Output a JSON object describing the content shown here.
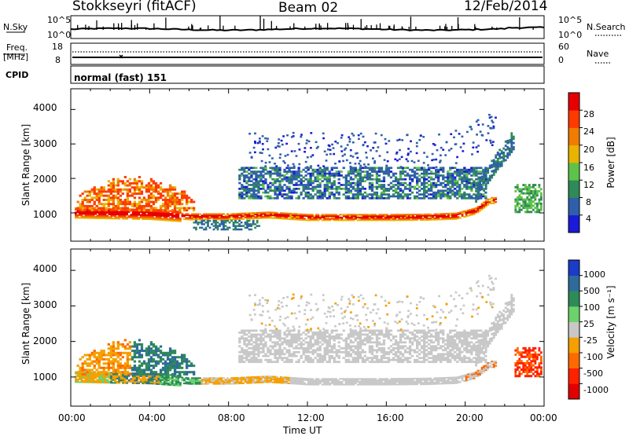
{
  "header": {
    "station": "Stokkseyri (fitACF)",
    "beam": "Beam 02",
    "date": "12/Feb/2014"
  },
  "noise_panel": {
    "left_label": "N.Sky",
    "right_label": "N.Search",
    "y_ticks_left": [
      "10^5",
      "10^0"
    ],
    "y_ticks_right": [
      "10^5",
      "10^0"
    ]
  },
  "freq_panel": {
    "left_label_1": "Freq.",
    "left_label_2": "[MHz]",
    "right_label": "Nave",
    "y_ticks_left": [
      "18",
      "8"
    ],
    "y_ticks_right": [
      "60",
      "0"
    ]
  },
  "cpid_panel": {
    "label": "CPID",
    "value": "normal (fast) 151"
  },
  "x_axis": {
    "label": "Time UT",
    "ticks": [
      "00:00",
      "04:00",
      "08:00",
      "12:00",
      "16:00",
      "20:00",
      "00:00"
    ]
  },
  "range_axis": {
    "label": "Slant Range [km]",
    "ticks": [
      "1000",
      "2000",
      "3000",
      "4000"
    ]
  },
  "chart_data": [
    {
      "type": "heatmap",
      "title": "",
      "xlabel": "Time UT",
      "ylabel": "Slant Range [km]",
      "xlim": [
        0,
        24
      ],
      "ylim": [
        180,
        4600
      ],
      "colorbar": {
        "label": "Power [dB]",
        "ticks": [
          "4",
          "8",
          "12",
          "16",
          "20",
          "24",
          "28"
        ],
        "colors": [
          "#1a1ad8",
          "#2f5faa",
          "#2e8b57",
          "#5fc24a",
          "#e8b400",
          "#f07c00",
          "#ff3a00",
          "#e60000"
        ]
      },
      "main_band_km": [
        [
          0.3,
          1000
        ],
        [
          2,
          980
        ],
        [
          4,
          960
        ],
        [
          6,
          880
        ],
        [
          8,
          880
        ],
        [
          10,
          930
        ],
        [
          12,
          860
        ],
        [
          14,
          860
        ],
        [
          16,
          860
        ],
        [
          18,
          870
        ],
        [
          19.5,
          900
        ],
        [
          20.5,
          1050
        ],
        [
          21.2,
          1350
        ]
      ]
    },
    {
      "type": "heatmap",
      "title": "",
      "xlabel": "Time UT",
      "ylabel": "Slant Range [km]",
      "xlim": [
        0,
        24
      ],
      "ylim": [
        180,
        4600
      ],
      "colorbar": {
        "label": "Velocity [m s⁻¹]",
        "ticks": [
          "1000",
          "500",
          "100",
          "25",
          "-25",
          "-100",
          "-500",
          "-1000"
        ],
        "colors": [
          "#1a3cc8",
          "#2e6b9a",
          "#2e8b57",
          "#6cd26c",
          "#c8c8c8",
          "#f5a000",
          "#ff6a00",
          "#ff2000",
          "#e00000"
        ]
      }
    }
  ]
}
